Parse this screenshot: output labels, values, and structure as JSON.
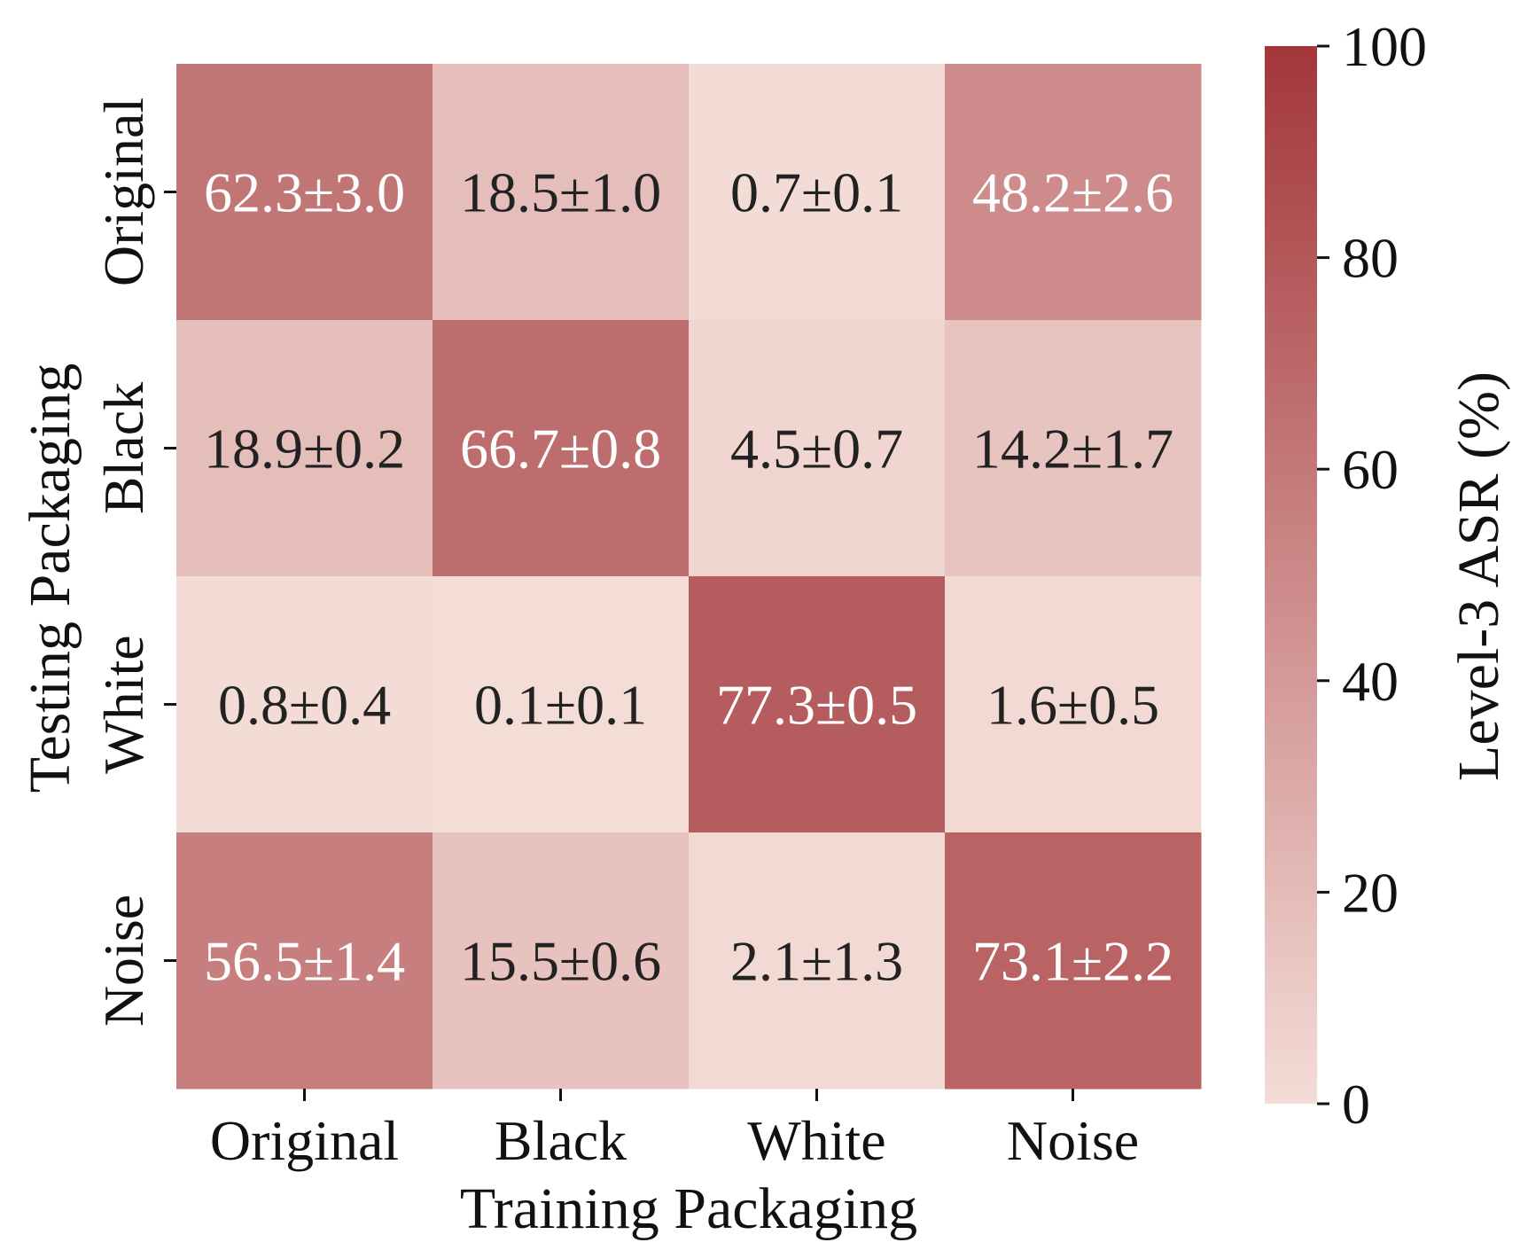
{
  "chart_data": {
    "type": "heatmap",
    "title": "",
    "xlabel": "Training Packaging",
    "ylabel": "Testing Packaging",
    "x_categories": [
      "Original",
      "Black",
      "White",
      "Noise"
    ],
    "y_categories": [
      "Original",
      "Black",
      "White",
      "Noise"
    ],
    "values": [
      [
        62.3,
        18.5,
        0.7,
        48.2
      ],
      [
        18.9,
        66.7,
        4.5,
        14.2
      ],
      [
        0.8,
        0.1,
        77.3,
        1.6
      ],
      [
        56.5,
        15.5,
        2.1,
        73.1
      ]
    ],
    "cell_labels": [
      [
        "62.3±3.0",
        "18.5±1.0",
        "0.7±0.1",
        "48.2±2.6"
      ],
      [
        "18.9±0.2",
        "66.7±0.8",
        "4.5±0.7",
        "14.2±1.7"
      ],
      [
        "0.8±0.4",
        "0.1±0.1",
        "77.3±0.5",
        "1.6±0.5"
      ],
      [
        "56.5±1.4",
        "15.5±0.6",
        "2.1±1.3",
        "73.1±2.2"
      ]
    ],
    "colorbar": {
      "label": "Level-3 ASR (%)",
      "range": [
        0,
        100
      ],
      "ticks": [
        0,
        20,
        40,
        60,
        80,
        100
      ],
      "color_low": "#f4dcd7",
      "color_high": "#a3363a"
    },
    "text_color_dark": "#222222",
    "text_color_light": "#ffffff",
    "grid": false
  }
}
